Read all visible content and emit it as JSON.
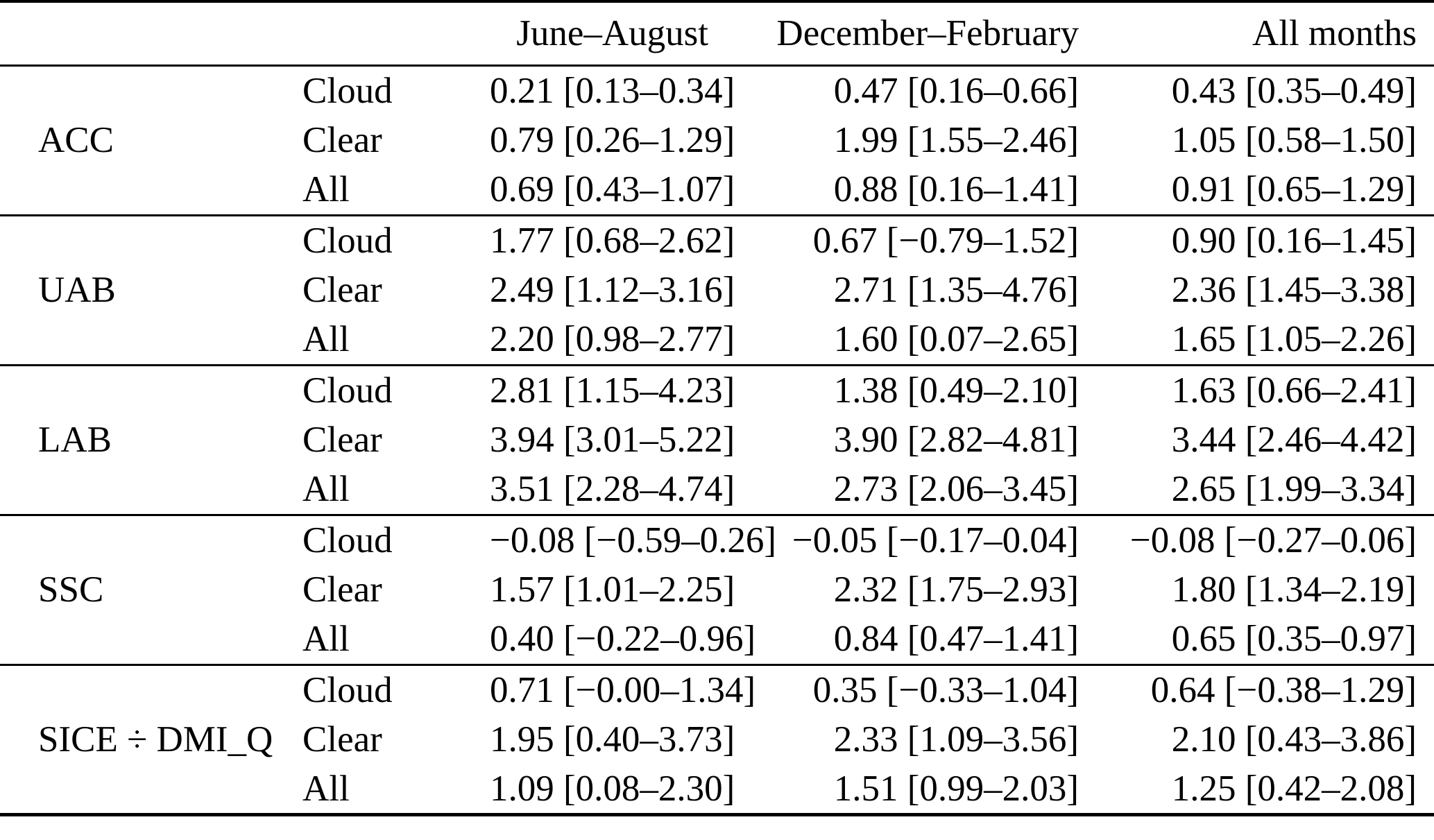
{
  "table": {
    "columns": [
      "June–August",
      "December–February",
      "All months"
    ],
    "groups": [
      {
        "label": "ACC",
        "rows": [
          {
            "label": "Cloud",
            "values": [
              "0.21 [0.13–0.34]",
              "0.47 [0.16–0.66]",
              "0.43 [0.35–0.49]"
            ]
          },
          {
            "label": "Clear",
            "values": [
              "0.79 [0.26–1.29]",
              "1.99 [1.55–2.46]",
              "1.05 [0.58–1.50]"
            ]
          },
          {
            "label": "All",
            "values": [
              "0.69 [0.43–1.07]",
              "0.88 [0.16–1.41]",
              "0.91 [0.65–1.29]"
            ]
          }
        ]
      },
      {
        "label": "UAB",
        "rows": [
          {
            "label": "Cloud",
            "values": [
              "1.77 [0.68–2.62]",
              "0.67 [−0.79–1.52]",
              "0.90 [0.16–1.45]"
            ]
          },
          {
            "label": "Clear",
            "values": [
              "2.49 [1.12–3.16]",
              "2.71 [1.35–4.76]",
              "2.36 [1.45–3.38]"
            ]
          },
          {
            "label": "All",
            "values": [
              "2.20 [0.98–2.77]",
              "1.60 [0.07–2.65]",
              "1.65 [1.05–2.26]"
            ]
          }
        ]
      },
      {
        "label": "LAB",
        "rows": [
          {
            "label": "Cloud",
            "values": [
              "2.81 [1.15–4.23]",
              "1.38 [0.49–2.10]",
              "1.63 [0.66–2.41]"
            ]
          },
          {
            "label": "Clear",
            "values": [
              "3.94 [3.01–5.22]",
              "3.90 [2.82–4.81]",
              "3.44 [2.46–4.42]"
            ]
          },
          {
            "label": "All",
            "values": [
              "3.51 [2.28–4.74]",
              "2.73 [2.06–3.45]",
              "2.65 [1.99–3.34]"
            ]
          }
        ]
      },
      {
        "label": "SSC",
        "rows": [
          {
            "label": "Cloud",
            "values": [
              "−0.08 [−0.59–0.26]",
              "−0.05 [−0.17–0.04]",
              "−0.08 [−0.27–0.06]"
            ]
          },
          {
            "label": "Clear",
            "values": [
              "1.57 [1.01–2.25]",
              "2.32 [1.75–2.93]",
              "1.80 [1.34–2.19]"
            ]
          },
          {
            "label": "All",
            "values": [
              "0.40 [−0.22–0.96]",
              "0.84 [0.47–1.41]",
              "0.65 [0.35–0.97]"
            ]
          }
        ]
      },
      {
        "label": "SICE ÷ DMI_Q",
        "rows": [
          {
            "label": "Cloud",
            "values": [
              "0.71 [−0.00–1.34]",
              "0.35 [−0.33–1.04]",
              "0.64 [−0.38–1.29]"
            ]
          },
          {
            "label": "Clear",
            "values": [
              "1.95 [0.40–3.73]",
              "2.33 [1.09–3.56]",
              "2.10 [0.43–3.86]"
            ]
          },
          {
            "label": "All",
            "values": [
              "1.09 [0.08–2.30]",
              "1.51 [0.99–2.03]",
              "1.25 [0.42–2.08]"
            ]
          }
        ]
      }
    ]
  },
  "chart_data": {
    "type": "table",
    "title": "",
    "columns": [
      "",
      "",
      "June–August",
      "December–February",
      "All months"
    ],
    "row_groups": [
      "ACC",
      "UAB",
      "LAB",
      "SSC",
      "SICE ÷ DMI_Q"
    ],
    "sub_rows": [
      "Cloud",
      "Clear",
      "All"
    ]
  }
}
